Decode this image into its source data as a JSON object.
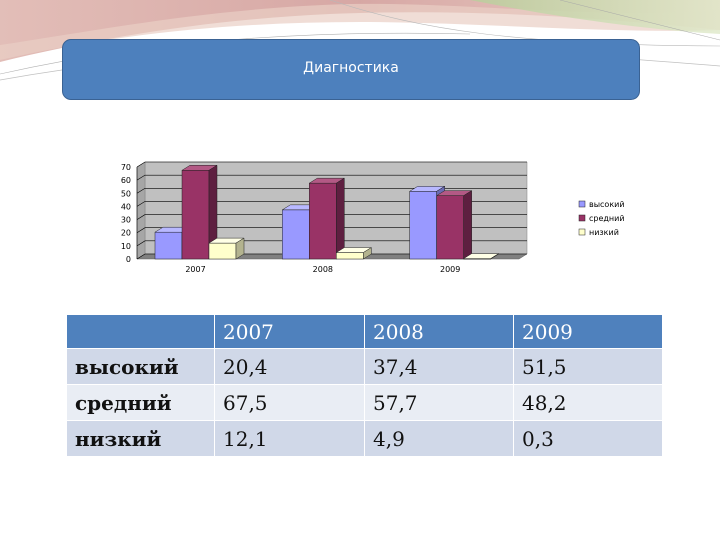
{
  "slide": {
    "title": "Диагностика"
  },
  "colors": {
    "title_fill": "#4d80bd",
    "table_header": "#4f81bd",
    "table_band_dark": "#d0d8e8",
    "table_band_light": "#e9edf4",
    "series": [
      "#9999ff",
      "#993366",
      "#ffffcc"
    ]
  },
  "chart_data": {
    "type": "bar",
    "categories": [
      "2007",
      "2008",
      "2009"
    ],
    "series": [
      {
        "name": "высокий",
        "values": [
          20.4,
          37.4,
          51.5
        ]
      },
      {
        "name": "средний",
        "values": [
          67.5,
          57.7,
          48.2
        ]
      },
      {
        "name": "низкий",
        "values": [
          12.1,
          4.9,
          0.3
        ]
      }
    ],
    "ylim": [
      0,
      70
    ],
    "yticks": [
      "0",
      "10",
      "20",
      "30",
      "40",
      "50",
      "60",
      "70"
    ],
    "grid": true,
    "legend": "right",
    "style": "3d-clustered-column"
  },
  "table": {
    "header": [
      "",
      "2007",
      "2008",
      "2009"
    ],
    "rows": [
      {
        "label": "высокий",
        "values": [
          "20,4",
          "37,4",
          "51,5"
        ]
      },
      {
        "label": "средний",
        "values": [
          "67,5",
          "57,7",
          "48,2"
        ]
      },
      {
        "label": "низкий",
        "values": [
          "12,1",
          "4,9",
          "0,3"
        ]
      }
    ]
  }
}
